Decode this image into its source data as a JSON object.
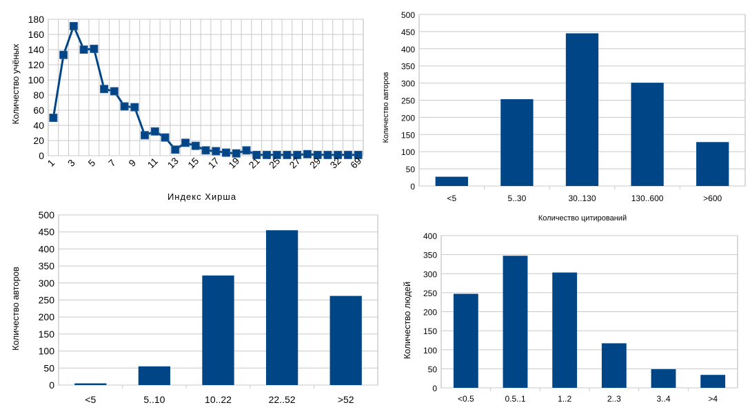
{
  "colors": {
    "series": "#004586",
    "grid": "#c8c8c8"
  },
  "chart_data": [
    {
      "type": "line",
      "title": "",
      "xlabel": "Индекс Хирша",
      "ylabel": "Количество учёных",
      "ylim": [
        0,
        180
      ],
      "yticks": [
        "0",
        "20",
        "40",
        "60",
        "80",
        "100",
        "120",
        "140",
        "160",
        "180"
      ],
      "xtick_labels": [
        "1",
        "3",
        "5",
        "7",
        "9",
        "11",
        "13",
        "15",
        "17",
        "19",
        "21",
        "25",
        "27",
        "29",
        "32",
        "69"
      ],
      "x": [
        "1",
        "2",
        "3",
        "4",
        "5",
        "6",
        "7",
        "8",
        "9",
        "10",
        "11",
        "12",
        "13",
        "14",
        "15",
        "16",
        "17",
        "18",
        "19",
        "20",
        "21",
        "22",
        "25",
        "26",
        "27",
        "28",
        "29",
        "30",
        "32",
        "33",
        "69"
      ],
      "values": [
        50,
        133,
        171,
        140,
        141,
        88,
        85,
        65,
        64,
        27,
        32,
        24,
        8,
        17,
        13,
        7,
        6,
        4,
        3,
        7,
        1,
        1,
        1,
        1,
        1,
        2,
        1,
        1,
        1,
        1,
        1
      ],
      "grid": true
    },
    {
      "type": "bar",
      "title": "",
      "xlabel": "Количество цитирований",
      "ylabel": "Количество авторов",
      "ylim": [
        0,
        500
      ],
      "yticks": [
        "0",
        "50",
        "100",
        "150",
        "200",
        "250",
        "300",
        "350",
        "400",
        "450",
        "500"
      ],
      "categories": [
        "<5",
        "5..30",
        "30..130",
        "130..600",
        ">600"
      ],
      "values": [
        27,
        253,
        445,
        301,
        128
      ],
      "grid": true
    },
    {
      "type": "bar",
      "title": "",
      "xlabel": "",
      "ylabel": "Количество авторов",
      "ylim": [
        0,
        500
      ],
      "yticks": [
        "0",
        "50",
        "100",
        "150",
        "200",
        "250",
        "300",
        "350",
        "400",
        "450",
        "500"
      ],
      "categories": [
        "<5",
        "5..10",
        "10..22",
        "22..52",
        ">52"
      ],
      "values": [
        5,
        55,
        322,
        455,
        262
      ],
      "grid": true
    },
    {
      "type": "bar",
      "title": "",
      "xlabel": "",
      "ylabel": "Количество людей",
      "ylim": [
        0,
        400
      ],
      "yticks": [
        "0",
        "50",
        "100",
        "150",
        "200",
        "250",
        "300",
        "350",
        "400"
      ],
      "categories": [
        "<0.5",
        "0.5..1",
        "1..2",
        "2..3",
        "3..4",
        ">4"
      ],
      "values": [
        247,
        347,
        303,
        117,
        49,
        34
      ],
      "grid": true
    }
  ]
}
